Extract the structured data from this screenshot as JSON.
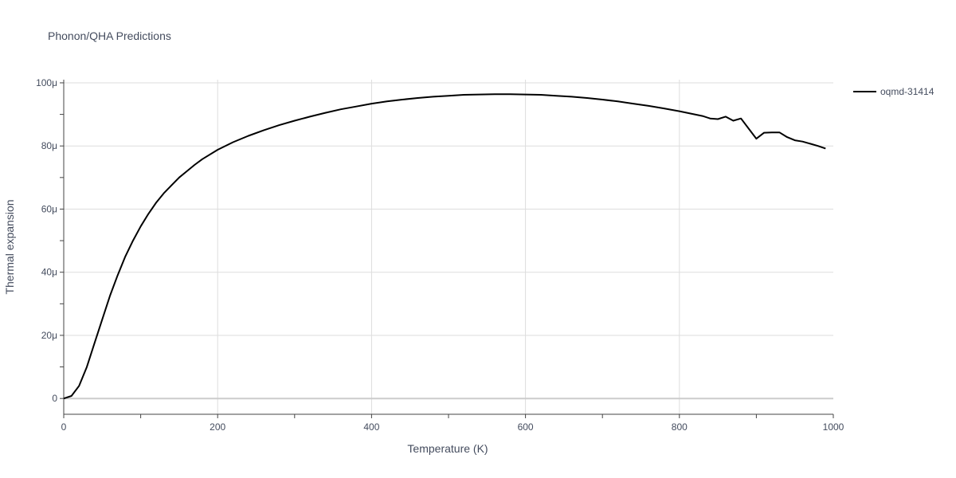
{
  "chart_data": {
    "type": "line",
    "title": "Phonon/QHA Predictions",
    "xlabel": "Temperature (K)",
    "ylabel": "Thermal expansion",
    "xlim": [
      0,
      1000
    ],
    "ylim": [
      -5,
      101
    ],
    "x_ticks": [
      0,
      200,
      400,
      600,
      800,
      1000
    ],
    "x_tick_labels": [
      "0",
      "200",
      "400",
      "600",
      "800",
      "1000"
    ],
    "y_ticks": [
      0,
      20,
      40,
      60,
      80,
      100
    ],
    "y_tick_labels": [
      "0",
      "20μ",
      "40μ",
      "60μ",
      "80μ",
      "100μ"
    ],
    "grid": true,
    "legend_position": "top-right",
    "series": [
      {
        "name": "oqmd-31414",
        "color": "#000000",
        "x": [
          0,
          10,
          20,
          30,
          40,
          50,
          60,
          70,
          80,
          90,
          100,
          110,
          120,
          130,
          140,
          150,
          160,
          170,
          180,
          200,
          220,
          240,
          260,
          280,
          300,
          320,
          340,
          360,
          380,
          400,
          420,
          440,
          460,
          480,
          500,
          520,
          540,
          560,
          580,
          600,
          620,
          640,
          660,
          680,
          700,
          720,
          740,
          760,
          780,
          800,
          820,
          830,
          840,
          850,
          860,
          870,
          880,
          890,
          900,
          910,
          920,
          930,
          940,
          950,
          960,
          970,
          980,
          990
        ],
        "y": [
          0,
          0.8,
          4,
          10,
          17.5,
          25,
          32.5,
          39,
          45,
          50,
          54.5,
          58.5,
          62,
          65,
          67.5,
          70,
          72,
          74,
          75.8,
          78.8,
          81.2,
          83.2,
          85,
          86.6,
          88,
          89.3,
          90.5,
          91.6,
          92.5,
          93.4,
          94.1,
          94.7,
          95.2,
          95.6,
          95.9,
          96.2,
          96.3,
          96.4,
          96.4,
          96.3,
          96.2,
          95.9,
          95.6,
          95.2,
          94.7,
          94.1,
          93.4,
          92.7,
          91.9,
          91.0,
          90.0,
          89.5,
          88.7,
          88.5,
          89.3,
          88.0,
          88.7,
          85.5,
          82.3,
          84.2,
          84.3,
          84.3,
          82.8,
          81.8,
          81.4,
          80.7,
          80.0,
          79.2
        ]
      }
    ]
  }
}
